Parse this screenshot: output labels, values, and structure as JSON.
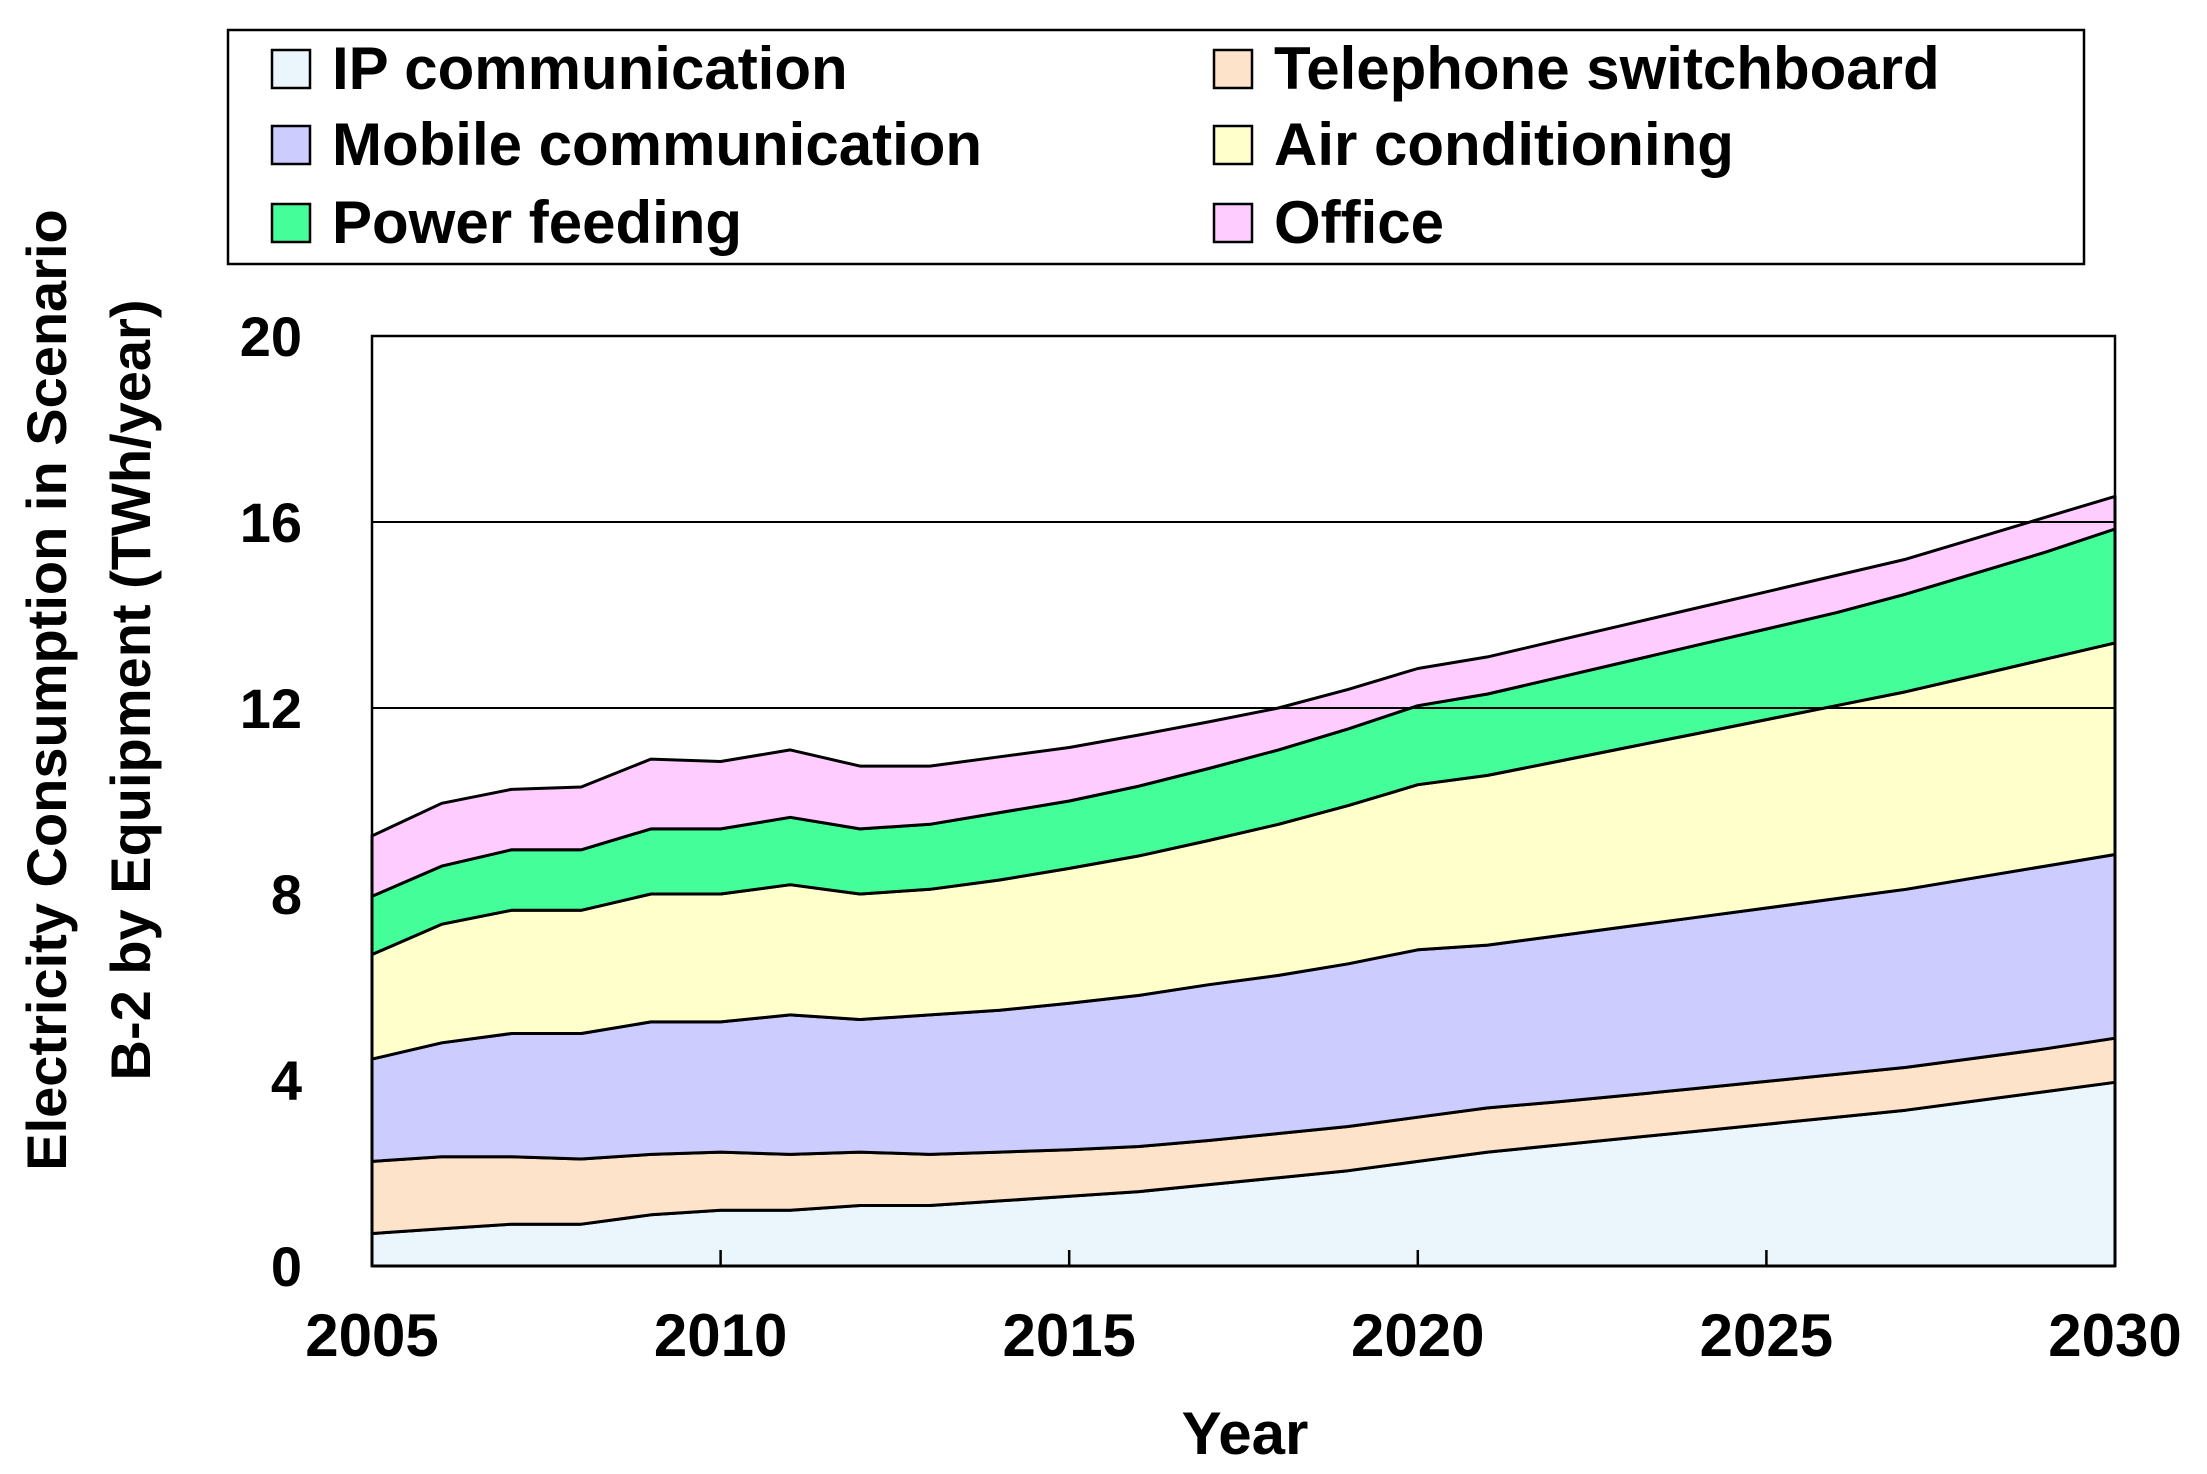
{
  "chart_data": {
    "type": "area",
    "stacked": true,
    "xlabel": "Year",
    "ylabel_lines": [
      "Electricity Consumption in Scenario",
      "B-2 by Equipment (TWh/year)"
    ],
    "xlim": [
      2005,
      2030
    ],
    "ylim": [
      0,
      20
    ],
    "x_ticks": [
      2005,
      2010,
      2015,
      2020,
      2025,
      2030
    ],
    "y_ticks": [
      0,
      4,
      8,
      12,
      16,
      20
    ],
    "gridlines_y": [
      12,
      16
    ],
    "legend_position": "top",
    "x": [
      2005,
      2006,
      2007,
      2008,
      2009,
      2010,
      2011,
      2012,
      2013,
      2014,
      2015,
      2016,
      2017,
      2018,
      2019,
      2020,
      2021,
      2022,
      2023,
      2024,
      2025,
      2026,
      2027,
      2028,
      2029,
      2030
    ],
    "series": [
      {
        "name": "IP communication",
        "color": "#eaf6fc",
        "values": [
          0.7,
          0.8,
          0.9,
          0.9,
          1.1,
          1.2,
          1.2,
          1.3,
          1.3,
          1.4,
          1.5,
          1.6,
          1.75,
          1.9,
          2.05,
          2.25,
          2.45,
          2.6,
          2.75,
          2.9,
          3.05,
          3.2,
          3.35,
          3.55,
          3.75,
          3.95
        ]
      },
      {
        "name": "Telephone switchboard",
        "color": "#fce3c9",
        "values": [
          1.55,
          1.55,
          1.45,
          1.4,
          1.3,
          1.25,
          1.2,
          1.15,
          1.1,
          1.05,
          1.0,
          0.97,
          0.95,
          0.95,
          0.95,
          0.95,
          0.95,
          0.93,
          0.92,
          0.92,
          0.92,
          0.92,
          0.92,
          0.92,
          0.92,
          0.95
        ]
      },
      {
        "name": "Mobile communication",
        "color": "#ccccff",
        "values": [
          2.2,
          2.45,
          2.65,
          2.7,
          2.85,
          2.8,
          3.0,
          2.85,
          3.0,
          3.05,
          3.15,
          3.25,
          3.35,
          3.4,
          3.5,
          3.6,
          3.5,
          3.57,
          3.63,
          3.68,
          3.73,
          3.78,
          3.83,
          3.88,
          3.93,
          3.95
        ]
      },
      {
        "name": "Air conditioning",
        "color": "#ffffcc",
        "values": [
          2.25,
          2.55,
          2.65,
          2.65,
          2.75,
          2.75,
          2.8,
          2.7,
          2.7,
          2.8,
          2.9,
          3.0,
          3.1,
          3.25,
          3.4,
          3.55,
          3.65,
          3.75,
          3.85,
          3.95,
          4.05,
          4.15,
          4.25,
          4.35,
          4.45,
          4.55
        ]
      },
      {
        "name": "Power feeding",
        "color": "#44ff99",
        "values": [
          1.25,
          1.25,
          1.3,
          1.3,
          1.4,
          1.4,
          1.45,
          1.4,
          1.4,
          1.45,
          1.45,
          1.5,
          1.55,
          1.6,
          1.65,
          1.7,
          1.75,
          1.8,
          1.85,
          1.9,
          1.95,
          2.0,
          2.1,
          2.2,
          2.3,
          2.45
        ]
      },
      {
        "name": "Office",
        "color": "#ffccff",
        "values": [
          1.3,
          1.35,
          1.3,
          1.35,
          1.5,
          1.45,
          1.45,
          1.35,
          1.25,
          1.2,
          1.15,
          1.1,
          1.0,
          0.9,
          0.85,
          0.8,
          0.8,
          0.8,
          0.8,
          0.8,
          0.8,
          0.8,
          0.75,
          0.75,
          0.75,
          0.7
        ]
      }
    ]
  }
}
